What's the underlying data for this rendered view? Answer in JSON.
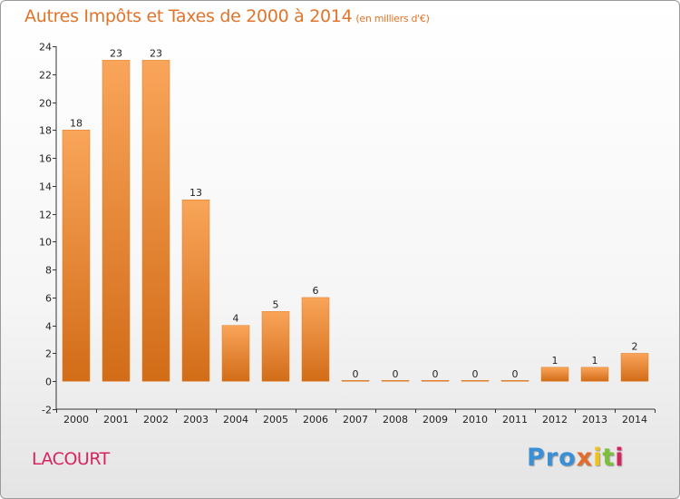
{
  "header": {
    "title": "Autres Impôts et Taxes de 2000 à 2014",
    "unit": "(en milliers d'€)"
  },
  "footer": {
    "commune": "LACOURT",
    "logo": {
      "p1": "Pro",
      "p2": "x",
      "p3": "i",
      "p4": "t",
      "p5": "i"
    }
  },
  "colors": {
    "bar": "#f28c30",
    "bar_light": "#f9a55a",
    "bar_dark": "#d26c17",
    "title": "#e0742a",
    "commune": "#d6245f"
  },
  "chart_data": {
    "type": "bar",
    "title": "Autres Impôts et Taxes de 2000 à 2014",
    "subtitle": "(en milliers d'€)",
    "xlabel": "",
    "ylabel": "",
    "categories": [
      "2000",
      "2001",
      "2002",
      "2003",
      "2004",
      "2005",
      "2006",
      "2007",
      "2008",
      "2009",
      "2010",
      "2011",
      "2012",
      "2013",
      "2014"
    ],
    "values": [
      18,
      23,
      23,
      13,
      4,
      5,
      6,
      0,
      0,
      0,
      0,
      0,
      1,
      1,
      2
    ],
    "data_labels": [
      "18",
      "23",
      "23",
      "13",
      "4",
      "5",
      "6",
      "0",
      "0",
      "0",
      "0",
      "0",
      "1",
      "1",
      "2"
    ],
    "ylim": [
      -2,
      24
    ],
    "yticks": [
      -2,
      0,
      2,
      4,
      6,
      8,
      10,
      12,
      14,
      16,
      18,
      20,
      22,
      24
    ],
    "ytick_labels": [
      "-2",
      "0",
      "2",
      "4",
      "6",
      "8",
      "10",
      "12",
      "14",
      "16",
      "18",
      "20",
      "22",
      "24"
    ],
    "grid": false,
    "legend": "none"
  }
}
